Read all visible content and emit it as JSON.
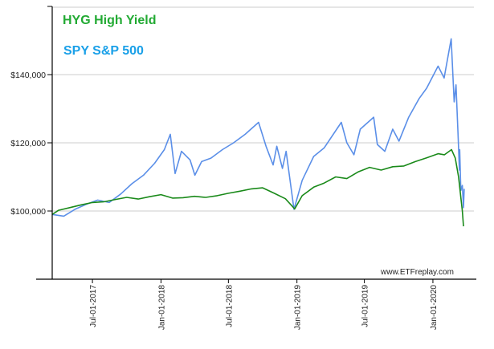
{
  "chart_data": {
    "type": "line",
    "title": "",
    "xlabel": "",
    "ylabel": "",
    "ylim": [
      80000,
      160000
    ],
    "xlim": [
      "2017-03-15",
      "2020-04-05"
    ],
    "yticks": [
      100000,
      120000,
      140000
    ],
    "ytick_labels": [
      "$100,000",
      "$120,000",
      "$140,000"
    ],
    "xticks": [
      "2017-07-01",
      "2018-01-01",
      "2018-07-01",
      "2019-01-01",
      "2019-07-01",
      "2020-01-01"
    ],
    "xtick_labels": [
      "Jul-01-2017",
      "Jan-01-2018",
      "Jul-01-2018",
      "Jan-01-2019",
      "Jul-01-2019",
      "Jan-01-2020"
    ],
    "grid": true,
    "legend_placement": "top-left",
    "watermark": "www.ETFreplay.com",
    "series": [
      {
        "name": "HYG High Yield",
        "color": "#1a8a1a",
        "legend_color": "#22aa33",
        "points": [
          [
            "2017-03-15",
            99000
          ],
          [
            "2017-04-01",
            100200
          ],
          [
            "2017-05-01",
            101000
          ],
          [
            "2017-06-01",
            101800
          ],
          [
            "2017-07-01",
            102500
          ],
          [
            "2017-08-01",
            102700
          ],
          [
            "2017-09-01",
            103400
          ],
          [
            "2017-10-01",
            104000
          ],
          [
            "2017-11-01",
            103500
          ],
          [
            "2017-12-01",
            104200
          ],
          [
            "2018-01-01",
            104800
          ],
          [
            "2018-02-01",
            103800
          ],
          [
            "2018-03-01",
            103900
          ],
          [
            "2018-04-01",
            104300
          ],
          [
            "2018-05-01",
            104000
          ],
          [
            "2018-06-01",
            104500
          ],
          [
            "2018-07-01",
            105200
          ],
          [
            "2018-08-01",
            105800
          ],
          [
            "2018-09-01",
            106500
          ],
          [
            "2018-10-01",
            106800
          ],
          [
            "2018-11-01",
            105200
          ],
          [
            "2018-12-01",
            103600
          ],
          [
            "2018-12-26",
            100600
          ],
          [
            "2019-01-15",
            104500
          ],
          [
            "2019-02-15",
            107000
          ],
          [
            "2019-03-15",
            108200
          ],
          [
            "2019-04-15",
            110000
          ],
          [
            "2019-05-15",
            109500
          ],
          [
            "2019-06-15",
            111500
          ],
          [
            "2019-07-15",
            112800
          ],
          [
            "2019-08-15",
            112000
          ],
          [
            "2019-09-15",
            113000
          ],
          [
            "2019-10-15",
            113200
          ],
          [
            "2019-11-15",
            114500
          ],
          [
            "2019-12-15",
            115600
          ],
          [
            "2020-01-15",
            116800
          ],
          [
            "2020-02-01",
            116500
          ],
          [
            "2020-02-20",
            118000
          ],
          [
            "2020-03-01",
            115500
          ],
          [
            "2020-03-10",
            110000
          ],
          [
            "2020-03-16",
            104000
          ],
          [
            "2020-03-20",
            100000
          ],
          [
            "2020-03-23",
            95500
          ]
        ]
      },
      {
        "name": "SPY S&P 500",
        "color": "#5b8fe8",
        "legend_color": "#1aa0e8",
        "points": [
          [
            "2017-03-15",
            99000
          ],
          [
            "2017-04-15",
            98500
          ],
          [
            "2017-05-15",
            100500
          ],
          [
            "2017-06-15",
            102000
          ],
          [
            "2017-07-15",
            103200
          ],
          [
            "2017-08-15",
            102500
          ],
          [
            "2017-09-15",
            105000
          ],
          [
            "2017-10-15",
            108000
          ],
          [
            "2017-11-15",
            110500
          ],
          [
            "2017-12-15",
            114000
          ],
          [
            "2018-01-10",
            118000
          ],
          [
            "2018-01-26",
            122500
          ],
          [
            "2018-02-08",
            111000
          ],
          [
            "2018-02-25",
            117500
          ],
          [
            "2018-03-20",
            115000
          ],
          [
            "2018-04-02",
            110500
          ],
          [
            "2018-04-20",
            114500
          ],
          [
            "2018-05-15",
            115500
          ],
          [
            "2018-06-15",
            118000
          ],
          [
            "2018-07-15",
            120000
          ],
          [
            "2018-08-15",
            122500
          ],
          [
            "2018-09-20",
            126000
          ],
          [
            "2018-10-10",
            119000
          ],
          [
            "2018-10-29",
            113500
          ],
          [
            "2018-11-08",
            119000
          ],
          [
            "2018-11-23",
            112500
          ],
          [
            "2018-12-03",
            117500
          ],
          [
            "2018-12-24",
            100500
          ],
          [
            "2019-01-15",
            109000
          ],
          [
            "2019-02-15",
            116000
          ],
          [
            "2019-03-15",
            118500
          ],
          [
            "2019-04-30",
            126000
          ],
          [
            "2019-05-15",
            120000
          ],
          [
            "2019-06-03",
            116500
          ],
          [
            "2019-06-20",
            124000
          ],
          [
            "2019-07-26",
            127500
          ],
          [
            "2019-08-05",
            119500
          ],
          [
            "2019-08-25",
            117500
          ],
          [
            "2019-09-15",
            124000
          ],
          [
            "2019-10-02",
            120500
          ],
          [
            "2019-10-28",
            127500
          ],
          [
            "2019-11-25",
            133000
          ],
          [
            "2019-12-15",
            136000
          ],
          [
            "2020-01-15",
            142500
          ],
          [
            "2020-01-31",
            139000
          ],
          [
            "2020-02-19",
            150500
          ],
          [
            "2020-02-27",
            132000
          ],
          [
            "2020-03-03",
            137000
          ],
          [
            "2020-03-09",
            121000
          ],
          [
            "2020-03-12",
            112000
          ],
          [
            "2020-03-13",
            118000
          ],
          [
            "2020-03-16",
            106000
          ],
          [
            "2020-03-20",
            107500
          ],
          [
            "2020-03-23",
            101000
          ],
          [
            "2020-03-25",
            106500
          ]
        ]
      }
    ]
  }
}
